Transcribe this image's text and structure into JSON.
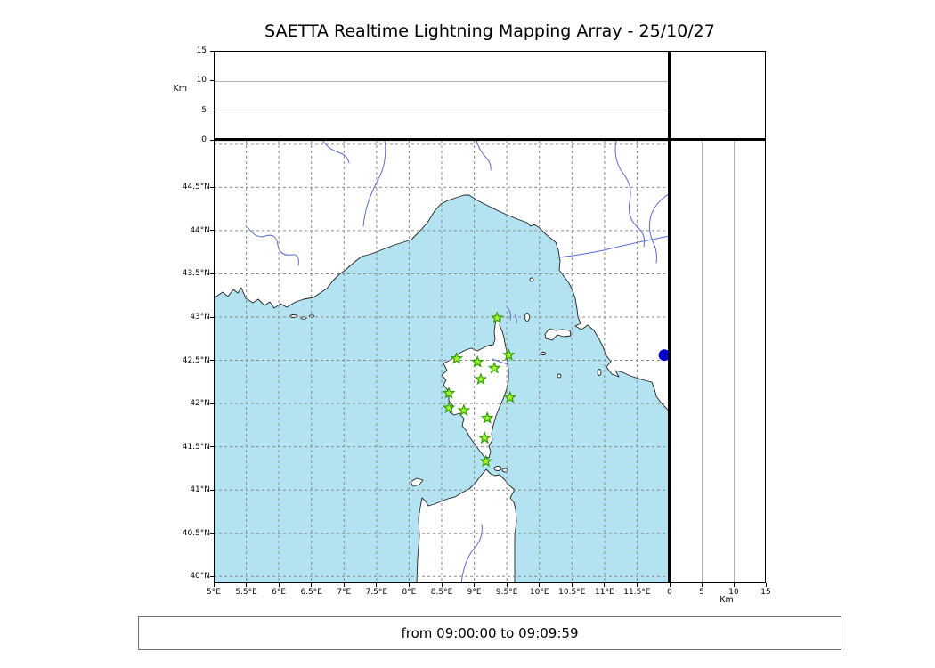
{
  "title": "SAETTA Realtime Lightning Mapping Array - 25/10/27",
  "footer": "from 09:00:00 to 09:09:59",
  "colors": {
    "sea": "#b3e3f0",
    "coast": "#1f1f1f",
    "river": "#5a6bd0",
    "station_fill": "#a6f22f",
    "station_stroke": "#2f9e00",
    "event_dot": "#0000cd"
  },
  "alt_axis": {
    "label": "Km",
    "max": 15,
    "grid": [
      5,
      10
    ],
    "ticks": [
      0,
      5,
      10,
      15
    ]
  },
  "map": {
    "proj": {
      "lon_min": 5,
      "lon_max": 12,
      "lat_min": 39.92,
      "lat_max": 45.05
    },
    "lon_grid": [
      5,
      5.5,
      6,
      6.5,
      7,
      7.5,
      8,
      8.5,
      9,
      9.5,
      10,
      10.5,
      11,
      11.5
    ],
    "lat_grid": [
      40,
      40.5,
      41,
      41.5,
      42,
      42.5,
      43,
      43.5,
      44,
      44.5,
      45
    ],
    "lon_ticks": [
      {
        "label": "5°E",
        "v": 5
      },
      {
        "label": "5.5°E",
        "v": 5.5
      },
      {
        "label": "6°E",
        "v": 6
      },
      {
        "label": "6.5°E",
        "v": 6.5
      },
      {
        "label": "7°E",
        "v": 7
      },
      {
        "label": "7.5°E",
        "v": 7.5
      },
      {
        "label": "8°E",
        "v": 8
      },
      {
        "label": "8.5°E",
        "v": 8.5
      },
      {
        "label": "9°E",
        "v": 9
      },
      {
        "label": "9.5°E",
        "v": 9.5
      },
      {
        "label": "10°E",
        "v": 10
      },
      {
        "label": "10.5°E",
        "v": 10.5
      },
      {
        "label": "11°E",
        "v": 11
      },
      {
        "label": "11.5°E",
        "v": 11.5
      }
    ],
    "lat_ticks": [
      {
        "label": "44.5°N",
        "v": 44.5
      },
      {
        "label": "44°N",
        "v": 44
      },
      {
        "label": "43.5°N",
        "v": 43.5
      },
      {
        "label": "43°N",
        "v": 43
      },
      {
        "label": "42.5°N",
        "v": 42.5
      },
      {
        "label": "42°N",
        "v": 42
      },
      {
        "label": "41.5°N",
        "v": 41.5
      },
      {
        "label": "41°N",
        "v": 41
      },
      {
        "label": "40.5°N",
        "v": 40.5
      },
      {
        "label": "40°N",
        "v": 40
      }
    ]
  },
  "chart_data": {
    "type": "scatter",
    "title": "SAETTA Realtime Lightning Mapping Array - 25/10/27",
    "time_window": "from 09:00:00 to 09:09:59",
    "map_extent": {
      "lon": [
        5,
        12
      ],
      "lat": [
        39.92,
        45.05
      ]
    },
    "altitude_km_range": [
      0,
      15
    ],
    "altitude_unit": "Km",
    "region": "Corsica / NW Mediterranean",
    "stations_lon_lat": [
      [
        9.35,
        42.99
      ],
      [
        8.73,
        42.52
      ],
      [
        9.05,
        42.48
      ],
      [
        9.53,
        42.56
      ],
      [
        9.31,
        42.41
      ],
      [
        9.1,
        42.28
      ],
      [
        8.61,
        42.12
      ],
      [
        9.55,
        42.07
      ],
      [
        8.61,
        41.95
      ],
      [
        8.84,
        41.92
      ],
      [
        9.2,
        41.83
      ],
      [
        9.16,
        41.6
      ],
      [
        9.18,
        41.33
      ]
    ],
    "events_lon_lat": [
      [
        11.92,
        42.56
      ]
    ]
  }
}
